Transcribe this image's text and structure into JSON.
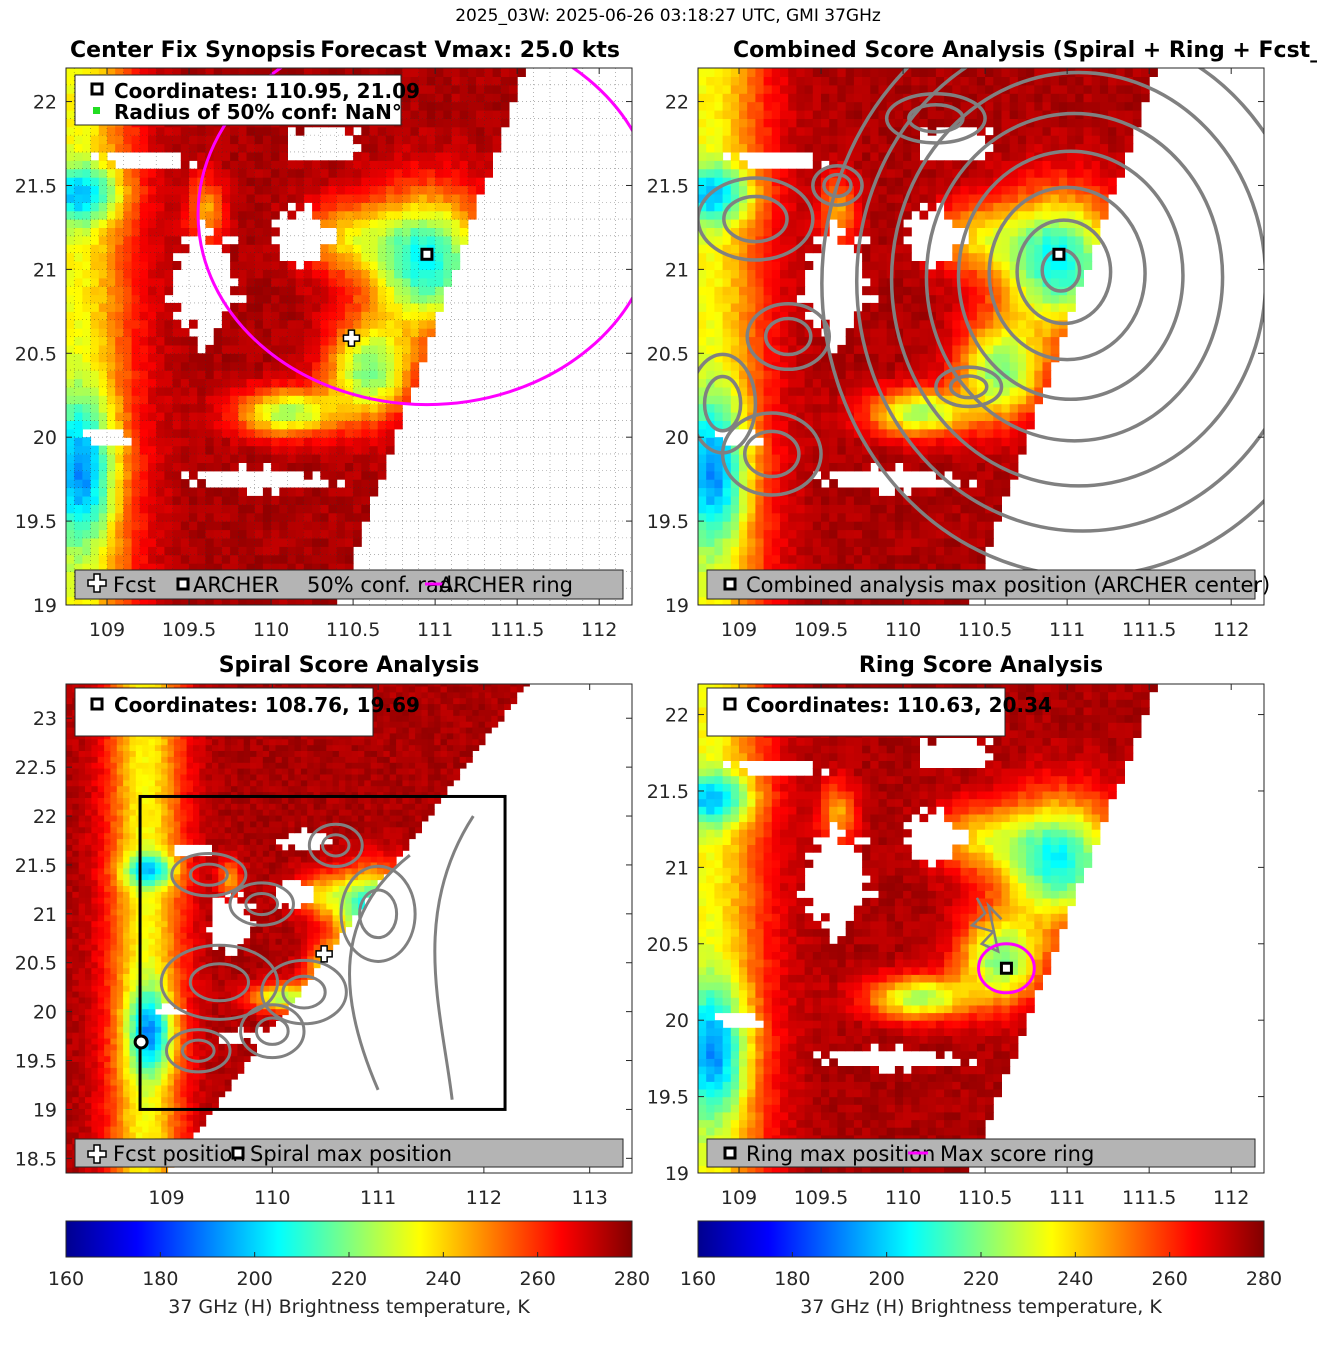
{
  "figure_title": "2025_03W: 2025-06-26 03:18:27 UTC, GMI 37GHz",
  "colors": {
    "contour": "#808080",
    "ring": "#ff00ff",
    "legend_bg": "#b4b4b4",
    "frame": "#262626"
  },
  "chart_data": [
    {
      "id": "center-fix",
      "type": "heatmap",
      "title_left": "Center Fix Synopsis",
      "title_right": "Forecast Vmax: 25.0 kts",
      "xlim": [
        108.75,
        112.2
      ],
      "ylim": [
        19,
        22.2
      ],
      "xticks": [
        109,
        109.5,
        110,
        110.5,
        111,
        111.5,
        112
      ],
      "xtick_labels": [
        "109",
        "109.5",
        "110",
        "110.5",
        "111",
        "111.5",
        "112"
      ],
      "yticks": [
        19,
        19.5,
        20,
        20.5,
        21,
        21.5,
        22
      ],
      "ytick_labels": [
        "19",
        "19.5",
        "20",
        "20.5",
        "21",
        "21.5",
        "22"
      ],
      "grid": true,
      "info_lines": [
        "Coordinates: 110.95, 21.09",
        "Radius of 50% conf: NaN°"
      ],
      "legend_items": [
        "Fcst",
        "ARCHER",
        "50% conf. rad.",
        "ARCHER ring"
      ],
      "markers": {
        "fcst": [
          110.49,
          20.59
        ],
        "archer": [
          110.95,
          21.09
        ]
      },
      "ring": {
        "center": [
          110.95,
          21.09
        ],
        "radius_deg": 1.5
      },
      "swath_edge": {
        "x_at_ylim_low": 110.4,
        "x_at_ylim_high": 111.55
      }
    },
    {
      "id": "combined",
      "type": "heatmap",
      "title": "Combined Score Analysis (Spiral + Ring + Fcst_Pe",
      "xlim": [
        108.75,
        112.2
      ],
      "ylim": [
        19,
        22.2
      ],
      "xticks": [
        109,
        109.5,
        110,
        110.5,
        111,
        111.5,
        112
      ],
      "xtick_labels": [
        "109",
        "109.5",
        "110",
        "110.5",
        "111",
        "111.5",
        "112"
      ],
      "yticks": [
        19,
        19.5,
        20,
        20.5,
        21,
        21.5,
        22
      ],
      "ytick_labels": [
        "19",
        "19.5",
        "20",
        "20.5",
        "21",
        "21.5",
        "22"
      ],
      "legend_items": [
        "Combined analysis max position (ARCHER center)"
      ],
      "markers": {
        "max": [
          110.95,
          21.09
        ]
      },
      "contour_center": [
        110.95,
        21.0
      ],
      "contour_radii": [
        0.12,
        0.3,
        0.5,
        0.72,
        0.95,
        1.2,
        1.45,
        1.7
      ]
    },
    {
      "id": "spiral",
      "type": "heatmap",
      "title": "Spiral Score Analysis",
      "xlim": [
        108.05,
        113.4
      ],
      "ylim": [
        18.35,
        23.35
      ],
      "xticks": [
        109,
        110,
        111,
        112,
        113
      ],
      "xtick_labels": [
        "109",
        "110",
        "111",
        "112",
        "113"
      ],
      "yticks": [
        18.5,
        19,
        19.5,
        20,
        20.5,
        21,
        21.5,
        22,
        22.5,
        23
      ],
      "ytick_labels": [
        "18.5",
        "19",
        "19.5",
        "20",
        "20.5",
        "21",
        "21.5",
        "22",
        "22.5",
        "23"
      ],
      "info_lines": [
        "Coordinates: 108.76, 19.69"
      ],
      "legend_items": [
        "Fcst position",
        "Spiral max position"
      ],
      "markers": {
        "fcst": [
          110.49,
          20.59
        ],
        "spiral_max": [
          108.76,
          19.69
        ]
      },
      "box": {
        "x": [
          108.75,
          112.2
        ],
        "y": [
          19,
          22.2
        ]
      },
      "swath_edge": {
        "x_at_ylim_low": 109.0,
        "x_at_ylim_high": 112.4
      }
    },
    {
      "id": "ring",
      "type": "heatmap",
      "title": "Ring Score Analysis",
      "xlim": [
        108.75,
        112.2
      ],
      "ylim": [
        19,
        22.2
      ],
      "xticks": [
        109,
        109.5,
        110,
        110.5,
        111,
        111.5,
        112
      ],
      "xtick_labels": [
        "109",
        "109.5",
        "110",
        "110.5",
        "111",
        "111.5",
        "112"
      ],
      "yticks": [
        19,
        19.5,
        20,
        20.5,
        21,
        21.5,
        22
      ],
      "ytick_labels": [
        "19",
        "19.5",
        "20",
        "20.5",
        "21",
        "21.5",
        "22"
      ],
      "info_lines": [
        "Coordinates: 110.63, 20.34"
      ],
      "legend_items": [
        "Ring max position",
        "Max score ring"
      ],
      "markers": {
        "ring_max": [
          110.63,
          20.34
        ]
      },
      "ring": {
        "center": [
          110.63,
          20.34
        ],
        "radius_deg": 0.17
      }
    }
  ],
  "colorbars": [
    {
      "id": "colorbar-left",
      "range": [
        160,
        280
      ],
      "ticks": [
        160,
        180,
        200,
        220,
        240,
        260,
        280
      ],
      "tick_labels": [
        "160",
        "180",
        "200",
        "220",
        "240",
        "260",
        "280"
      ],
      "label": "37 GHz (H) Brightness temperature, K"
    },
    {
      "id": "colorbar-right",
      "range": [
        160,
        280
      ],
      "ticks": [
        160,
        180,
        200,
        220,
        240,
        260,
        280
      ],
      "tick_labels": [
        "160",
        "180",
        "200",
        "220",
        "240",
        "260",
        "280"
      ],
      "label": "37 GHz (H) Brightness temperature, K"
    }
  ]
}
